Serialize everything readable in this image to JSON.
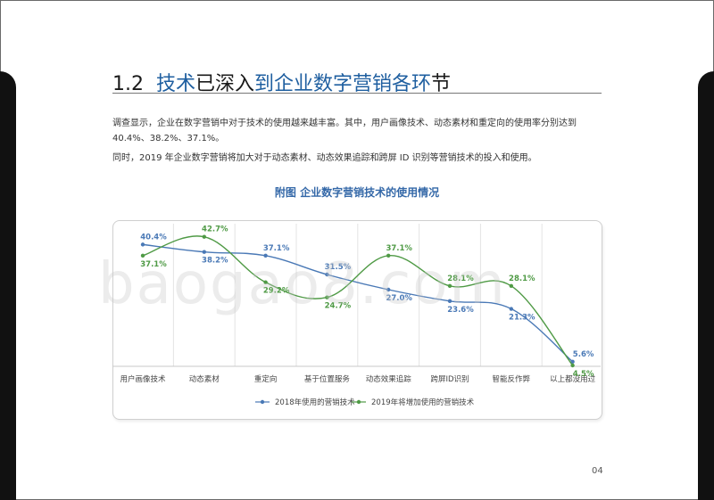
{
  "header": {
    "section_number": "1.2",
    "title_part1": "技术",
    "title_part2": "已深入",
    "title_part3": "到企业数字营销各环",
    "title_part4": "节"
  },
  "body_text": {
    "line1": "调查显示，企业在数字营销中对于技术的使用越来越丰富。其中，用户画像技术、动态素材和重定向的使用率分别达到",
    "line2": "40.4%、38.2%、37.1%。",
    "line3": "同时，2019 年企业数字营销将加大对于动态素材、动态效果追踪和跨屏 ID 识别等营销技术的投入和使用。"
  },
  "figure_title": "附图  企业数字营销技术的使用情况",
  "page_number": "04",
  "watermark": "baogao8.com",
  "colors": {
    "series_2018": "#4a79b6",
    "series_2019": "#4f9a45",
    "heading_blue": "#1f5fa0"
  },
  "chart_data": {
    "type": "line",
    "smooth": true,
    "categories": [
      "用户画像技术",
      "动态素材",
      "重定向",
      "基于位置服务",
      "动态效果追踪",
      "跨屏ID识别",
      "智能反作弊",
      "以上都没用过"
    ],
    "series": [
      {
        "name": "2018年使用的营销技术",
        "values": [
          40.4,
          38.2,
          37.1,
          31.5,
          27.0,
          23.6,
          21.3,
          5.6
        ],
        "labels": [
          "40.4%",
          "38.2%",
          "37.1%",
          "31.5%",
          "27.0%",
          "23.6%",
          "21.3%",
          "5.6%"
        ]
      },
      {
        "name": "2019年将增加使用的营销技术",
        "values": [
          37.1,
          42.7,
          29.2,
          24.7,
          37.1,
          28.1,
          28.1,
          4.5
        ],
        "labels": [
          "37.1%",
          "42.7%",
          "29.2%",
          "24.7%",
          "37.1%",
          "28.1%",
          "28.1%",
          "4.5%"
        ]
      }
    ],
    "ylim": [
      0,
      45
    ],
    "grid": "vertical",
    "legend": "bottom"
  }
}
